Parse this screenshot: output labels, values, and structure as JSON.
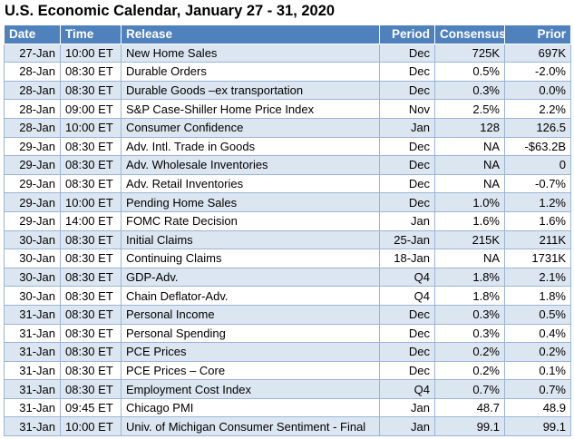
{
  "header": {
    "title": "U.S. Economic Calendar, January 27 - 31, 2020"
  },
  "table": {
    "columns": [
      "Date",
      "Time",
      "Release",
      "Period",
      "Consensus",
      "Prior"
    ],
    "rows": [
      [
        "27-Jan",
        "10:00 ET",
        "New Home Sales",
        "Dec",
        "725K",
        "697K"
      ],
      [
        "28-Jan",
        "08:30 ET",
        "Durable Orders",
        "Dec",
        "0.5%",
        "-2.0%"
      ],
      [
        "28-Jan",
        "08:30 ET",
        "Durable Goods –ex transportation",
        "Dec",
        "0.3%",
        "0.0%"
      ],
      [
        "28-Jan",
        "09:00 ET",
        "S&P Case-Shiller Home Price Index",
        "Nov",
        "2.5%",
        "2.2%"
      ],
      [
        "28-Jan",
        "10:00 ET",
        "Consumer Confidence",
        "Jan",
        "128",
        "126.5"
      ],
      [
        "29-Jan",
        "08:30 ET",
        "Adv. Intl. Trade in Goods",
        "Dec",
        "NA",
        "-$63.2B"
      ],
      [
        "29-Jan",
        "08:30 ET",
        "Adv. Wholesale Inventories",
        "Dec",
        "NA",
        "0"
      ],
      [
        "29-Jan",
        "08:30 ET",
        "Adv. Retail Inventories",
        "Dec",
        "NA",
        "-0.7%"
      ],
      [
        "29-Jan",
        "10:00 ET",
        "Pending Home Sales",
        "Dec",
        "1.0%",
        "1.2%"
      ],
      [
        "29-Jan",
        "14:00 ET",
        "FOMC Rate Decision",
        "Jan",
        "1.6%",
        "1.6%"
      ],
      [
        "30-Jan",
        "08:30 ET",
        "Initial Claims",
        "25-Jan",
        "215K",
        "211K"
      ],
      [
        "30-Jan",
        "08:30 ET",
        "Continuing Claims",
        "18-Jan",
        "NA",
        "1731K"
      ],
      [
        "30-Jan",
        "08:30 ET",
        "GDP-Adv.",
        "Q4",
        "1.8%",
        "2.1%"
      ],
      [
        "30-Jan",
        "08:30 ET",
        "Chain Deflator-Adv.",
        "Q4",
        "1.8%",
        "1.8%"
      ],
      [
        "31-Jan",
        "08:30 ET",
        "Personal Income",
        "Dec",
        "0.3%",
        "0.5%"
      ],
      [
        "31-Jan",
        "08:30 ET",
        "Personal Spending",
        "Dec",
        "0.3%",
        "0.4%"
      ],
      [
        "31-Jan",
        "08:30 ET",
        "PCE Prices",
        "Dec",
        "0.2%",
        "0.2%"
      ],
      [
        "31-Jan",
        "08:30 ET",
        "PCE Prices – Core",
        "Dec",
        "0.2%",
        "0.1%"
      ],
      [
        "31-Jan",
        "08:30 ET",
        "Employment Cost Index",
        "Q4",
        "0.7%",
        "0.7%"
      ],
      [
        "31-Jan",
        "09:45 ET",
        "Chicago PMI",
        "Jan",
        "48.7",
        "48.9"
      ],
      [
        "31-Jan",
        "10:00 ET",
        "Univ. of Michigan Consumer Sentiment - Final",
        "Jan",
        "99.1",
        "99.1"
      ]
    ]
  }
}
